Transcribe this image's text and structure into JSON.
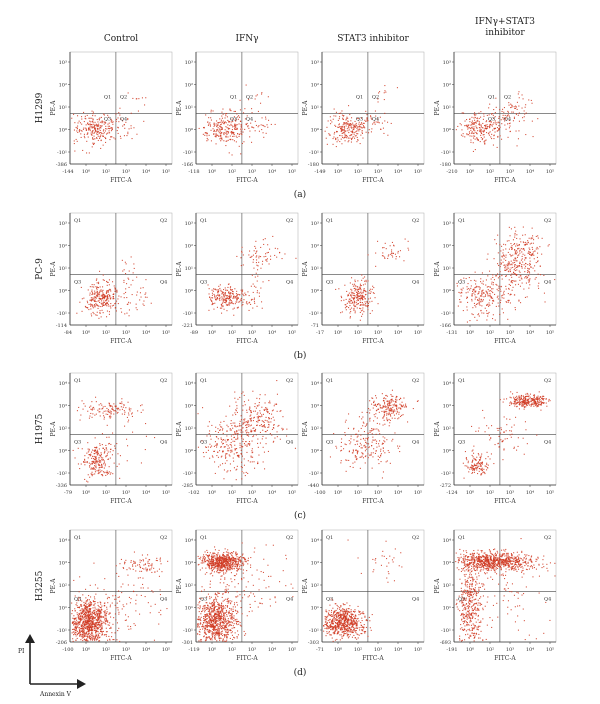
{
  "columns": [
    "Control",
    "IFNγ",
    "STAT3 inhibitor",
    [
      "IFNγ+STAT3",
      "inhibitor"
    ]
  ],
  "rows": [
    {
      "cell_line": "H1299",
      "panel_label": "(a)",
      "quadrant_labels": [
        "Q1",
        "Q2",
        "Q3",
        "Q4"
      ],
      "quadrant_labels_shown": false,
      "y_ticks": [
        "10³",
        "10²",
        "10¹",
        "10⁰",
        "-10¹"
      ],
      "y_min_labels": [
        "-386",
        "-166",
        "-180",
        "-180"
      ],
      "x_min_labels": [
        "-144",
        "-118",
        "-149",
        "-210"
      ],
      "x_ticks": [
        "10⁰",
        "10²",
        "10³",
        "10⁴",
        "10⁵"
      ],
      "x_axis_label": "FITC-A",
      "y_axis_label": "PE-A",
      "events": [
        {
          "main": [
            [
              0.25,
              0.32,
              0.11,
              0.07,
              240
            ],
            [
              0.5,
              0.36,
              0.08,
              0.06,
              30
            ],
            [
              0.6,
              0.55,
              0.08,
              0.06,
              10
            ]
          ]
        },
        {
          "main": [
            [
              0.27,
              0.32,
              0.11,
              0.07,
              240
            ],
            [
              0.55,
              0.38,
              0.1,
              0.08,
              40
            ],
            [
              0.6,
              0.65,
              0.07,
              0.05,
              10
            ]
          ]
        },
        {
          "main": [
            [
              0.25,
              0.32,
              0.1,
              0.07,
              230
            ],
            [
              0.52,
              0.38,
              0.08,
              0.06,
              30
            ],
            [
              0.58,
              0.65,
              0.07,
              0.05,
              10
            ]
          ]
        },
        {
          "main": [
            [
              0.25,
              0.32,
              0.1,
              0.07,
              200
            ],
            [
              0.52,
              0.4,
              0.12,
              0.08,
              90
            ],
            [
              0.65,
              0.5,
              0.08,
              0.07,
              20
            ]
          ]
        }
      ]
    },
    {
      "cell_line": "PC-9",
      "panel_label": "(b)",
      "quadrant_labels": [
        "Q1",
        "Q2",
        "Q3",
        "Q4"
      ],
      "y_ticks": [
        "10³",
        "10²",
        "10¹",
        "10⁰",
        "-10¹"
      ],
      "y_min_labels": [
        "-114",
        "-221",
        "-71",
        "-166"
      ],
      "x_min_labels": [
        "-84",
        "-89",
        "-17",
        "-131"
      ],
      "x_ticks": [
        "10⁰",
        "10²",
        "10³",
        "10⁴",
        "10⁵"
      ],
      "x_axis_label": "FITC-A",
      "y_axis_label": "PE-A",
      "events": [
        {
          "main": [
            [
              0.3,
              0.25,
              0.09,
              0.07,
              260
            ],
            [
              0.62,
              0.27,
              0.08,
              0.08,
              40
            ],
            [
              0.55,
              0.5,
              0.05,
              0.08,
              15
            ]
          ]
        },
        {
          "main": [
            [
              0.3,
              0.25,
              0.1,
              0.05,
              230
            ],
            [
              0.62,
              0.63,
              0.1,
              0.05,
              60
            ],
            [
              0.6,
              0.35,
              0.06,
              0.1,
              30
            ]
          ]
        },
        {
          "main": [
            [
              0.35,
              0.25,
              0.08,
              0.07,
              230
            ],
            [
              0.68,
              0.65,
              0.08,
              0.05,
              40
            ]
          ]
        },
        {
          "main": [
            [
              0.28,
              0.27,
              0.15,
              0.09,
              230
            ],
            [
              0.62,
              0.55,
              0.12,
              0.14,
              280
            ],
            [
              0.7,
              0.7,
              0.08,
              0.06,
              60
            ]
          ]
        }
      ]
    },
    {
      "cell_line": "H1975",
      "panel_label": "(c)",
      "quadrant_labels": [
        "Q1",
        "Q2",
        "Q3",
        "Q4"
      ],
      "y_ticks": [
        "10⁴",
        "10³",
        "10²",
        "10⁰",
        "-10²"
      ],
      "y_min_labels": [
        "-336",
        "-285",
        "-440",
        "-272"
      ],
      "x_min_labels": [
        "-79",
        "-102",
        "-100",
        "-124"
      ],
      "x_ticks": [
        "10⁰",
        "10²",
        "10³",
        "10⁴",
        "10⁵"
      ],
      "x_axis_label": "FITC-A",
      "y_axis_label": "PE-A",
      "events": [
        {
          "main": [
            [
              0.27,
              0.22,
              0.08,
              0.08,
              220
            ],
            [
              0.38,
              0.68,
              0.14,
              0.04,
              120
            ],
            [
              0.5,
              0.4,
              0.12,
              0.1,
              20
            ]
          ]
        },
        {
          "main": [
            [
              0.35,
              0.35,
              0.14,
              0.13,
              250
            ],
            [
              0.58,
              0.6,
              0.13,
              0.11,
              220
            ]
          ]
        },
        {
          "main": [
            [
              0.42,
              0.35,
              0.14,
              0.11,
              200
            ],
            [
              0.65,
              0.7,
              0.09,
              0.06,
              200
            ]
          ]
        },
        {
          "main": [
            [
              0.22,
              0.17,
              0.06,
              0.05,
              120
            ],
            [
              0.72,
              0.75,
              0.1,
              0.03,
              280
            ],
            [
              0.45,
              0.45,
              0.14,
              0.12,
              70
            ]
          ]
        }
      ]
    },
    {
      "cell_line": "H3255",
      "panel_label": "(d)",
      "quadrant_labels": [
        "Q1",
        "Q2",
        "Q3",
        "Q4"
      ],
      "y_ticks": [
        "10⁴",
        "10³",
        "10²",
        "10¹",
        "-10¹"
      ],
      "y_min_labels": [
        "-206",
        "-301",
        "-303",
        "-693"
      ],
      "x_min_labels": [
        "-100",
        "-119",
        "-71",
        "-191"
      ],
      "x_ticks": [
        "10⁰",
        "10²",
        "10³",
        "10⁴",
        "10⁵"
      ],
      "x_axis_label": "FITC-A",
      "y_axis_label": "PE-A",
      "events": [
        {
          "main": [
            [
              0.18,
              0.18,
              0.1,
              0.1,
              900
            ],
            [
              0.7,
              0.7,
              0.12,
              0.04,
              80
            ],
            [
              0.5,
              0.35,
              0.2,
              0.15,
              120
            ]
          ]
        },
        {
          "main": [
            [
              0.2,
              0.2,
              0.1,
              0.11,
              800
            ],
            [
              0.25,
              0.72,
              0.1,
              0.04,
              600
            ],
            [
              0.5,
              0.5,
              0.2,
              0.2,
              120
            ]
          ]
        },
        {
          "main": [
            [
              0.2,
              0.18,
              0.1,
              0.07,
              650
            ],
            [
              0.55,
              0.7,
              0.12,
              0.08,
              30
            ]
          ]
        },
        {
          "main": [
            [
              0.15,
              0.3,
              0.06,
              0.2,
              400
            ],
            [
              0.38,
              0.72,
              0.2,
              0.04,
              800
            ],
            [
              0.5,
              0.45,
              0.2,
              0.2,
              80
            ]
          ]
        }
      ]
    }
  ],
  "axis_arrow_labels": {
    "y": "PI",
    "x": "Annexin V"
  },
  "colors": {
    "dots": "#d03a22",
    "axes": "#333333",
    "text": "#222222"
  }
}
